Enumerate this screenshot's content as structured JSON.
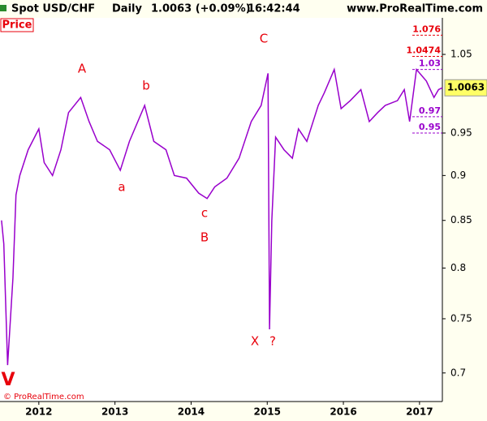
{
  "chart_data": {
    "type": "line",
    "title": "Spot USD/CHF",
    "period": "Daily",
    "quote": "1.0063 (+0.09%)",
    "time": "16:42:44",
    "source": "www.ProRealTime.com",
    "copyright": "© ProRealTime.com",
    "x": [
      2011.51,
      2011.54,
      2011.59,
      2011.66,
      2011.7,
      2011.75,
      2011.86,
      2012.0,
      2012.07,
      2012.18,
      2012.29,
      2012.39,
      2012.55,
      2012.66,
      2012.77,
      2012.93,
      2013.07,
      2013.19,
      2013.39,
      2013.51,
      2013.67,
      2013.78,
      2013.94,
      2014.1,
      2014.21,
      2014.31,
      2014.47,
      2014.63,
      2014.79,
      2014.92,
      2015.01,
      2015.03,
      2015.06,
      2015.11,
      2015.22,
      2015.33,
      2015.41,
      2015.52,
      2015.67,
      2015.75,
      2015.88,
      2015.97,
      2016.09,
      2016.23,
      2016.34,
      2016.45,
      2016.55,
      2016.71,
      2016.8,
      2016.87,
      2016.96,
      2017.09,
      2017.19,
      2017.25,
      2017.3
    ],
    "series": [
      {
        "name": "Price",
        "color": "#9900cc",
        "values": [
          0.85,
          0.825,
          0.707,
          0.79,
          0.878,
          0.9,
          0.93,
          0.955,
          0.915,
          0.9,
          0.93,
          0.975,
          0.994,
          0.964,
          0.94,
          0.93,
          0.906,
          0.94,
          0.984,
          0.94,
          0.93,
          0.9,
          0.897,
          0.88,
          0.874,
          0.887,
          0.897,
          0.92,
          0.964,
          0.984,
          1.025,
          0.74,
          0.85,
          0.945,
          0.93,
          0.92,
          0.955,
          0.94,
          0.984,
          1.0,
          1.03,
          0.98,
          0.99,
          1.004,
          0.964,
          0.975,
          0.984,
          0.99,
          1.004,
          0.964,
          1.03,
          1.015,
          0.994,
          1.004,
          1.0063
        ]
      }
    ],
    "current_price": 1.0063,
    "current_price_color": "#ffff66",
    "levels": [
      {
        "value": 1.076,
        "color": "#e8000b"
      },
      {
        "value": 1.0474,
        "color": "#e8000b"
      },
      {
        "value": 1.03,
        "color": "#9900cc"
      },
      {
        "value": 0.97,
        "color": "#9900cc"
      },
      {
        "value": 0.95,
        "color": "#9900cc"
      }
    ],
    "annotations": [
      "C",
      "A",
      "b",
      "a",
      "c",
      "B",
      "X",
      "?",
      "V"
    ],
    "log_scale": true,
    "ylim": [
      0.675,
      1.1
    ],
    "yticks": [
      0.7,
      0.75,
      0.8,
      0.85,
      0.9,
      0.95,
      1.05
    ],
    "xlim": [
      2011.49,
      2017.3
    ],
    "xticks": [
      2012,
      2013,
      2014,
      2015,
      2016,
      2017
    ]
  }
}
